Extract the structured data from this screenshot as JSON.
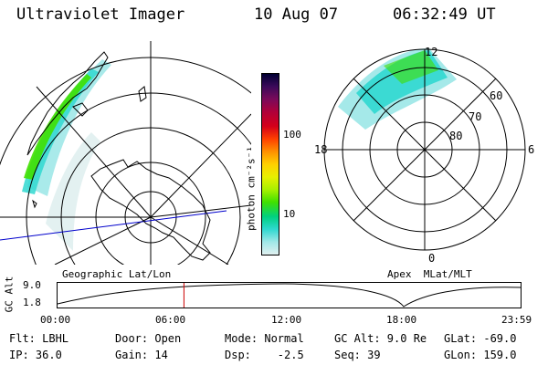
{
  "header": {
    "title": "Ultraviolet Imager",
    "date": "10 Aug 07",
    "time": "06:32:49 UT"
  },
  "colorbar": {
    "label": "photon cm⁻²s⁻¹",
    "ticks": [
      "100",
      "10"
    ],
    "colors": [
      "#000033",
      "#3b0a5a",
      "#7a0a5a",
      "#b0003a",
      "#d4001a",
      "#ff4000",
      "#ff9000",
      "#ffd000",
      "#e8f000",
      "#a8f000",
      "#40e000",
      "#00d080",
      "#30d8d0",
      "#a0e8e8",
      "#e0f0f0"
    ]
  },
  "maps": {
    "geo_label": "Geographic Lat/Lon",
    "mag_label": "Apex  MLat/MLT",
    "mlt_labels": {
      "top": "12",
      "left": "18",
      "right": "6",
      "bottom": "0"
    },
    "mlat_labels": [
      "60",
      "70",
      "80"
    ]
  },
  "timeline": {
    "axis_label": "GC Alt",
    "y_ticks": [
      "9.0",
      "1.8"
    ],
    "x_ticks": [
      "00:00",
      "06:00",
      "12:00",
      "18:00",
      "23:59"
    ],
    "current_time_fraction": 0.273
  },
  "footer": {
    "flt": "Flt: LBHL",
    "ip": "IP: 36.0",
    "door": "Door: Open",
    "gain": "Gain: 14",
    "mode": "Mode: Normal",
    "dsp": "Dsp:    -2.5",
    "gc_alt": "GC Alt: 9.0 Re",
    "seq": "Seq: 39",
    "glat": "GLat: -69.0",
    "glon": "GLon: 159.0"
  }
}
